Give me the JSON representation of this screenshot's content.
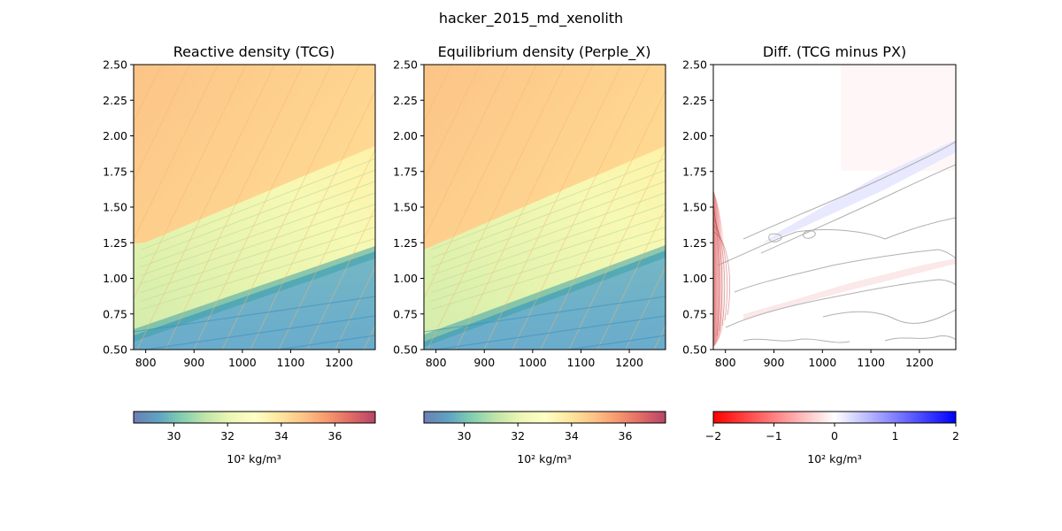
{
  "figure": {
    "suptitle": "hacker_2015_md_xenolith"
  },
  "colors": {
    "spectral": [
      "#5e4fa2",
      "#3288bd",
      "#66c2a5",
      "#abdda4",
      "#e6f598",
      "#ffffbf",
      "#fee08b",
      "#fdae61",
      "#f46d43",
      "#d53e4f",
      "#9e0142"
    ],
    "bwr": [
      "#ff0000",
      "#ffffff",
      "#0000ff"
    ],
    "contour_gray": "#b0b0b0"
  },
  "chart_data": [
    {
      "type": "heatmap",
      "title": "Reactive density (TCG)",
      "xlabel": "",
      "ylabel": "",
      "xlim": [
        775,
        1275
      ],
      "ylim": [
        0.5,
        2.5
      ],
      "xticks": [
        800,
        900,
        1000,
        1100,
        1200
      ],
      "yticks": [
        "0.50",
        "0.75",
        "1.00",
        "1.25",
        "1.50",
        "1.75",
        "2.00",
        "2.25",
        "2.50"
      ],
      "colormap": "Spectral_r",
      "colorbar": {
        "vmin": 28.5,
        "vmax": 37.5,
        "ticks": [
          "30",
          "32",
          "34",
          "36"
        ],
        "label": "10² kg/m³"
      },
      "phase_boundaries": {
        "upper": {
          "x": [
            775,
            800,
            1275
          ],
          "y": [
            1.2,
            1.22,
            1.9
          ]
        },
        "lower": {
          "x": [
            775,
            1275
          ],
          "y": [
            0.6,
            1.18
          ]
        },
        "apex": {
          "x": 800,
          "y": 0.75
        }
      }
    },
    {
      "type": "heatmap",
      "title": "Equilibrium density (Perple_X)",
      "xlabel": "",
      "ylabel": "",
      "xlim": [
        775,
        1275
      ],
      "ylim": [
        0.5,
        2.5
      ],
      "xticks": [
        800,
        900,
        1000,
        1100,
        1200
      ],
      "yticks": [
        "0.50",
        "0.75",
        "1.00",
        "1.25",
        "1.50",
        "1.75",
        "2.00",
        "2.25",
        "2.50"
      ],
      "colormap": "Spectral_r",
      "colorbar": {
        "vmin": 28.5,
        "vmax": 37.5,
        "ticks": [
          "30",
          "32",
          "34",
          "36"
        ],
        "label": "10² kg/m³"
      },
      "phase_boundaries": {
        "upper": {
          "x": [
            775,
            1275
          ],
          "y": [
            1.2,
            1.9
          ]
        },
        "lower": {
          "x": [
            775,
            1275
          ],
          "y": [
            0.55,
            1.18
          ]
        }
      }
    },
    {
      "type": "heatmap",
      "title": "Diff. (TCG minus PX)",
      "xlabel": "",
      "ylabel": "",
      "xlim": [
        775,
        1275
      ],
      "ylim": [
        0.5,
        2.5
      ],
      "xticks": [
        800,
        900,
        1000,
        1100,
        1200
      ],
      "yticks": [
        "0.50",
        "0.75",
        "1.00",
        "1.25",
        "1.50",
        "1.75",
        "2.00",
        "2.25",
        "2.50"
      ],
      "colormap": "bwr_r",
      "colorbar": {
        "vmin": -2,
        "vmax": 2,
        "ticks": [
          "−2",
          "−1",
          "0",
          "1",
          "2"
        ],
        "label": "10² kg/m³"
      }
    }
  ]
}
